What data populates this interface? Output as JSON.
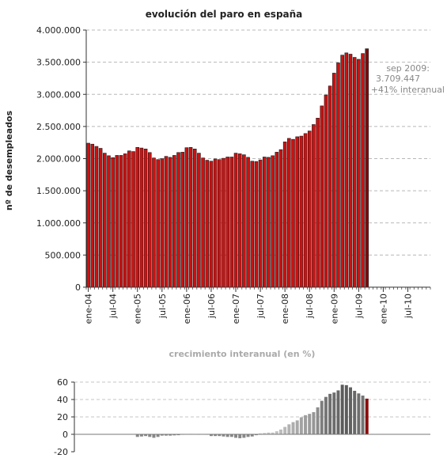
{
  "chart_data": [
    {
      "type": "bar",
      "title": "evolución del paro en españa",
      "ylabel": "nº de desempleados",
      "xlabel": "",
      "ylim": [
        0,
        4000000
      ],
      "yticks": [
        "0",
        "500.000",
        "1.000.000",
        "1.500.000",
        "2.000.000",
        "2.500.000",
        "3.000.000",
        "3.500.000",
        "4.000.000"
      ],
      "x_tick_labels": [
        "ene-04",
        "jul-04",
        "ene-05",
        "jul-05",
        "ene-06",
        "jul-06",
        "ene-07",
        "jul-07",
        "ene-08",
        "jul-08",
        "ene-09",
        "jul-09",
        "ene-10",
        "jul-10"
      ],
      "x_range": [
        "ene-04",
        "dic-10"
      ],
      "grid": "horizontal dashed",
      "bar_color": "#cc1111",
      "highlight_color": "#7a0e0e",
      "annotation": {
        "lines": [
          "sep 2009:",
          "3.709.447",
          "+41% interanual"
        ],
        "color": "#888888"
      },
      "series": [
        {
          "start": "ene-04",
          "values": [
            2240000,
            2225000,
            2190000,
            2160000,
            2085000,
            2045000,
            2015000,
            2050000,
            2050000,
            2075000,
            2120000,
            2110000,
            2175000,
            2165000,
            2150000,
            2095000,
            2010000,
            1985000,
            2000000,
            2035000,
            2020000,
            2050000,
            2095000,
            2100000,
            2170000,
            2175000,
            2150000,
            2085000,
            2010000,
            1975000,
            1960000,
            1995000,
            1985000,
            2005000,
            2025000,
            2025000,
            2085000,
            2075000,
            2060000,
            2020000,
            1960000,
            1955000,
            1980000,
            2025000,
            2020000,
            2045000,
            2100000,
            2140000,
            2260000,
            2315000,
            2300000,
            2340000,
            2350000,
            2390000,
            2430000,
            2530000,
            2630000,
            2820000,
            2990000,
            3130000,
            3330000,
            3490000,
            3610000,
            3645000,
            3625000,
            3575000,
            3545000,
            3635000,
            3709447
          ]
        }
      ]
    },
    {
      "type": "bar",
      "title": "crecimiento interanual (en %)",
      "xlabel": "",
      "ylabel": "",
      "ylim": [
        -20,
        60
      ],
      "yticks": [
        "-20",
        "0",
        "20",
        "40",
        "60"
      ],
      "grid": "horizontal dashed",
      "bar_color": "#888888",
      "highlight_color": "#8b0a0a",
      "series": [
        {
          "start": "ene-05",
          "values": [
            -3,
            -2.5,
            -2,
            -3,
            -4,
            -3,
            -1.5,
            -1.5,
            -1.5,
            -1.2,
            -1,
            -0.5,
            -0.2,
            0.5,
            0,
            -0.5,
            0,
            -0.5,
            -2,
            -2,
            -2,
            -2.5,
            -3,
            -3,
            -4,
            -4.5,
            -4,
            -3,
            -2.5,
            -1,
            1,
            1.5,
            2,
            2,
            3.5,
            5.5,
            8.5,
            11.5,
            14,
            16,
            19.5,
            22,
            23.5,
            25.5,
            31,
            38.5,
            43,
            46.5,
            48,
            50.5,
            57,
            56.5,
            54,
            50,
            47,
            44.5,
            41
          ]
        }
      ]
    }
  ]
}
